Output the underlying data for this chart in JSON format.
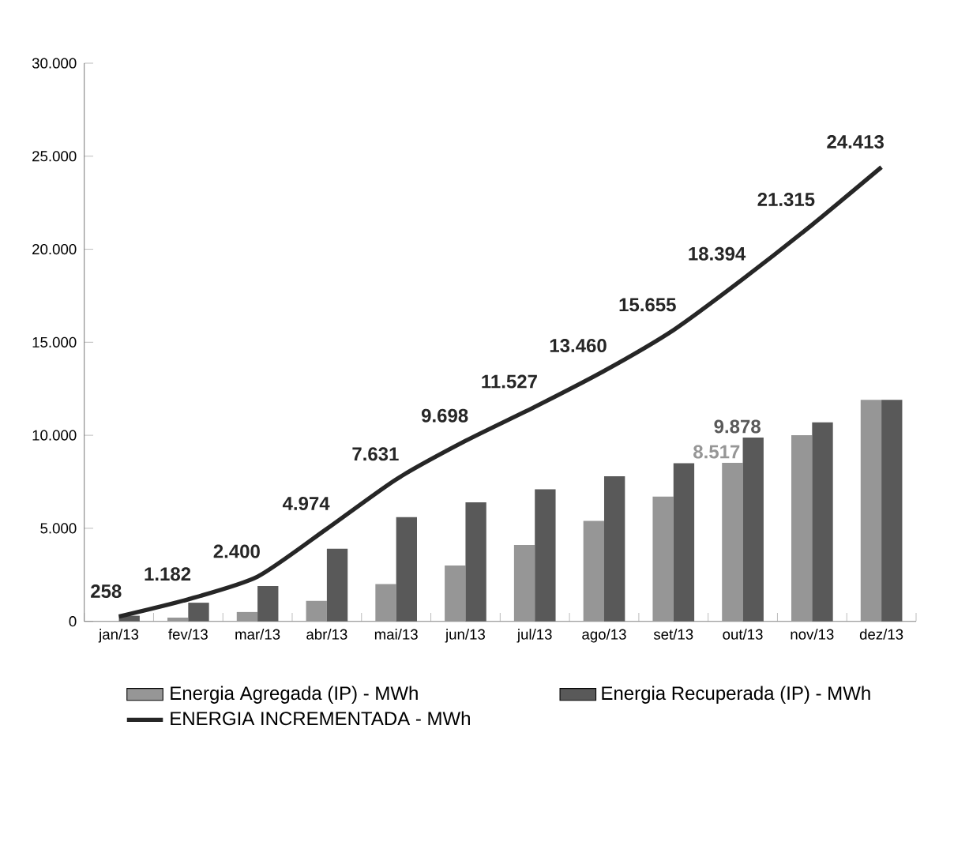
{
  "chart_data": {
    "type": "bar",
    "categories": [
      "jan/13",
      "fev/13",
      "mar/13",
      "abr/13",
      "mai/13",
      "jun/13",
      "jul/13",
      "ago/13",
      "set/13",
      "out/13",
      "nov/13",
      "dez/13"
    ],
    "series": [
      {
        "name": "Energia Agregada (IP) - MWh",
        "color": "#969696",
        "values": [
          null,
          200,
          500,
          1100,
          2000,
          3000,
          4100,
          5400,
          6700,
          8517,
          10000,
          11900
        ],
        "value_labels": [
          null,
          null,
          null,
          null,
          null,
          null,
          null,
          null,
          null,
          "8.517",
          null,
          null
        ]
      },
      {
        "name": "Energia Recuperada (IP) - MWh",
        "color": "#595959",
        "values": [
          300,
          1000,
          1900,
          3900,
          5600,
          6400,
          7100,
          7800,
          8500,
          9878,
          10700,
          11900
        ],
        "value_labels": [
          null,
          null,
          null,
          null,
          null,
          null,
          null,
          null,
          null,
          "9.878",
          null,
          null
        ]
      },
      {
        "name": "ENERGIA INCREMENTADA - MWh",
        "type": "line",
        "color": "#262626",
        "values": [
          258,
          1182,
          2400,
          4974,
          7631,
          9698,
          11527,
          13460,
          15655,
          18394,
          21315,
          24413
        ],
        "value_labels": [
          "258",
          "1.182",
          "2.400",
          "4.974",
          "7.631",
          "9.698",
          "11.527",
          "13.460",
          "15.655",
          "18.394",
          "21.315",
          "24.413"
        ]
      }
    ],
    "ylim": [
      0,
      30000
    ],
    "yticks": [
      {
        "value": 0,
        "label": "0"
      },
      {
        "value": 5000,
        "label": "5.000"
      },
      {
        "value": 10000,
        "label": "10.000"
      },
      {
        "value": 15000,
        "label": "15.000"
      },
      {
        "value": 20000,
        "label": "20.000"
      },
      {
        "value": 25000,
        "label": "25.000"
      },
      {
        "value": 30000,
        "label": "30.000"
      }
    ],
    "legend": "bottom",
    "grid": false
  }
}
